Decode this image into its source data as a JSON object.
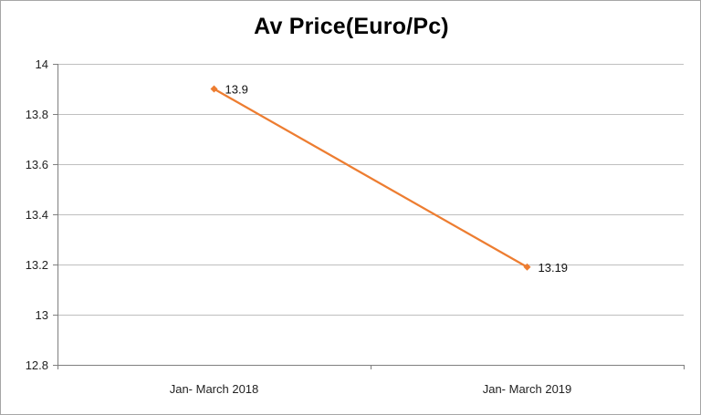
{
  "chart_data": {
    "type": "line",
    "title": "Av Price(Euro/Pc)",
    "xlabel": "",
    "ylabel": "",
    "categories": [
      "Jan- March 2018",
      "Jan- March 2019"
    ],
    "series": [
      {
        "values": [
          13.9,
          13.19
        ],
        "data_labels": [
          "13.9",
          "13.19"
        ]
      }
    ],
    "ylim": [
      12.8,
      14
    ],
    "yticks": [
      "12.8",
      "13",
      "13.2",
      "13.4",
      "13.6",
      "13.8",
      "14"
    ],
    "ytick_values": [
      12.8,
      13.0,
      13.2,
      13.4,
      13.6,
      13.8,
      14.0
    ],
    "grid": true,
    "legend": "none",
    "colors": {
      "series": "#ed7d31",
      "grid": "#bfbfbf",
      "axis": "#7f7f7f"
    }
  }
}
